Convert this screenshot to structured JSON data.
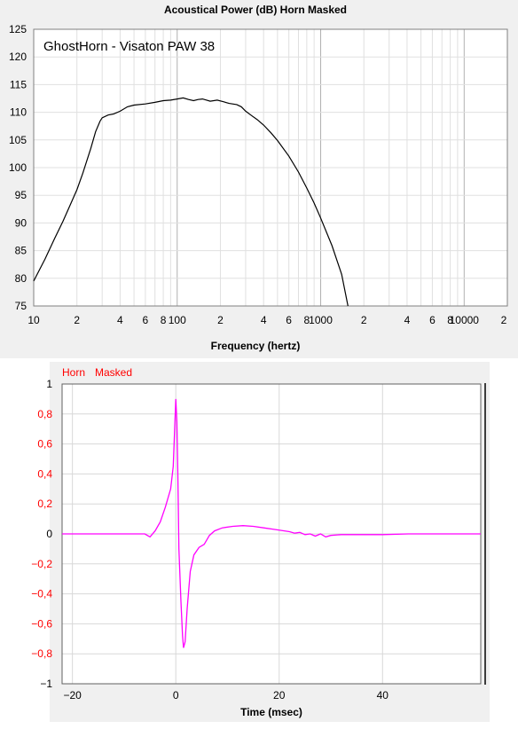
{
  "chart_data": [
    {
      "type": "line",
      "title": "Acoustical Power (dB)   Horn   Masked",
      "annotation": "GhostHorn - Visaton PAW 38",
      "xlabel": "Frequency (hertz)",
      "ylabel": "",
      "xscale": "log",
      "xlim": [
        10,
        20000
      ],
      "ylim": [
        75,
        125
      ],
      "grid": true,
      "y_ticks": [
        "125",
        "120",
        "115",
        "110",
        "105",
        "100",
        "95",
        "90",
        "85",
        "80",
        "75"
      ],
      "x_ticks": [
        "10",
        "2",
        "4",
        "6",
        "8",
        "100",
        "2",
        "4",
        "6",
        "8",
        "1000",
        "2",
        "4",
        "6",
        "8",
        "10000",
        "2"
      ],
      "colors": {
        "line": "#000000",
        "grid_minor": "#e0e0e0",
        "grid_major": "#b0b0b0"
      },
      "series": [
        {
          "name": "",
          "x": [
            10,
            12,
            14,
            16,
            18,
            20,
            22,
            25,
            27,
            29,
            30,
            33,
            36,
            40,
            45,
            50,
            60,
            70,
            80,
            90,
            100,
            110,
            120,
            130,
            140,
            150,
            170,
            190,
            210,
            230,
            260,
            280,
            300,
            330,
            360,
            400,
            450,
            500,
            600,
            700,
            800,
            900,
            1000,
            1200,
            1400,
            1550
          ],
          "y": [
            79.5,
            83.5,
            87.2,
            90.3,
            93.3,
            96.0,
            99.0,
            103.5,
            106.5,
            108.4,
            109.0,
            109.5,
            109.7,
            110.2,
            111.0,
            111.3,
            111.5,
            111.8,
            112.1,
            112.2,
            112.4,
            112.6,
            112.3,
            112.1,
            112.3,
            112.4,
            112.0,
            112.2,
            111.9,
            111.6,
            111.4,
            111.0,
            110.2,
            109.4,
            108.7,
            107.7,
            106.3,
            104.9,
            102.1,
            99.2,
            96.3,
            93.6,
            90.9,
            85.9,
            80.7,
            75.0
          ]
        }
      ]
    },
    {
      "type": "line",
      "title": "",
      "legend": [
        "Horn",
        "Masked"
      ],
      "xlabel": "Time (msec)",
      "ylabel": "",
      "xlim": [
        -22,
        59
      ],
      "ylim": [
        -1,
        1
      ],
      "grid": true,
      "y_ticks": [
        "1",
        "0,8",
        "0,6",
        "0,4",
        "0,2",
        "0",
        "−0,2",
        "−0,4",
        "−0,6",
        "−0,8",
        "−1"
      ],
      "x_ticks": [
        "−20",
        "0",
        "20",
        "40"
      ],
      "colors": {
        "line": "#ff00ff",
        "legend": "#ff0000",
        "axis_label_red": "#ff0000",
        "grid": "#d8d8d8"
      },
      "series": [
        {
          "name": "",
          "x": [
            -22,
            -6,
            -5,
            -4,
            -3,
            -2,
            -1,
            -0.5,
            0,
            0.2,
            0.4,
            0.6,
            1.0,
            1.3,
            1.5,
            1.8,
            2.2,
            2.8,
            3.5,
            4.5,
            5.5,
            6.5,
            7.5,
            9,
            11,
            13,
            15,
            17,
            19,
            21,
            22,
            23,
            24,
            25,
            26,
            27,
            28,
            29,
            30,
            32,
            35,
            40,
            45,
            50,
            55,
            59
          ],
          "y": [
            0,
            0.0,
            -0.02,
            0.02,
            0.08,
            0.18,
            0.3,
            0.45,
            0.9,
            0.75,
            0.4,
            -0.1,
            -0.45,
            -0.68,
            -0.76,
            -0.72,
            -0.5,
            -0.25,
            -0.14,
            -0.09,
            -0.07,
            -0.01,
            0.02,
            0.04,
            0.05,
            0.055,
            0.05,
            0.04,
            0.03,
            0.02,
            0.015,
            0.005,
            0.01,
            -0.005,
            0.0,
            -0.015,
            0.0,
            -0.02,
            -0.01,
            -0.005,
            -0.005,
            -0.005,
            0.0,
            0.0,
            0.0,
            0.0
          ]
        }
      ]
    }
  ]
}
